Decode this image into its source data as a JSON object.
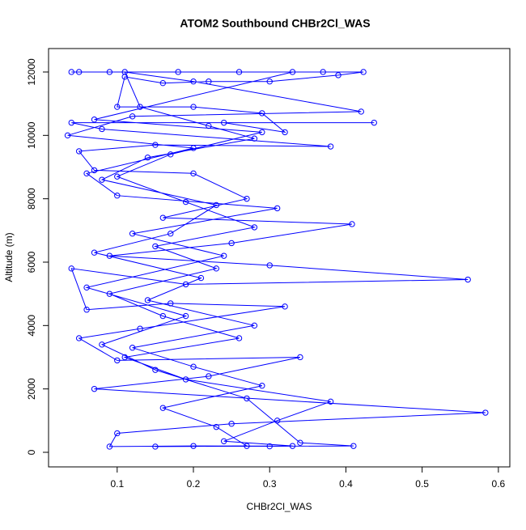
{
  "chart_data": {
    "type": "line",
    "title": "ATOM2 Southbound CHBr2Cl_WAS",
    "x_label": "CHBr2Cl_WAS",
    "y_label": "Altitude (m)",
    "color": "#0000ff",
    "xlim": [
      0.01,
      0.615
    ],
    "ylim": [
      -460,
      12740
    ],
    "xticks": [
      0.1,
      0.2,
      0.3,
      0.4,
      0.5,
      0.6
    ],
    "yticks": [
      0,
      2000,
      4000,
      6000,
      8000,
      10000,
      12000
    ],
    "x": [
      0.04,
      0.05,
      0.09,
      0.18,
      0.26,
      0.37,
      0.423,
      0.39,
      0.3,
      0.22,
      0.16,
      0.11,
      0.1,
      0.2,
      0.29,
      0.32,
      0.24,
      0.437,
      0.04,
      0.08,
      0.38,
      0.15,
      0.05,
      0.07,
      0.2,
      0.27,
      0.16,
      0.408,
      0.25,
      0.09,
      0.3,
      0.56,
      0.19,
      0.04,
      0.06,
      0.17,
      0.32,
      0.13,
      0.05,
      0.1,
      0.34,
      0.22,
      0.07,
      0.583,
      0.25,
      0.1,
      0.09,
      0.2,
      0.3,
      0.41,
      0.34,
      0.27,
      0.15,
      0.08,
      0.19,
      0.06,
      0.24,
      0.12,
      0.31,
      0.1,
      0.06,
      0.2,
      0.035,
      0.12,
      0.42,
      0.2,
      0.11,
      0.13,
      0.22,
      0.28,
      0.14,
      0.08,
      0.23,
      0.17,
      0.07,
      0.21,
      0.14,
      0.28,
      0.12,
      0.2,
      0.29,
      0.16,
      0.23,
      0.27,
      0.15,
      0.33,
      0.24,
      0.31,
      0.38,
      0.19,
      0.11,
      0.26,
      0.16,
      0.09,
      0.23,
      0.15,
      0.28,
      0.19,
      0.1,
      0.17,
      0.29,
      0.07,
      0.33
    ],
    "values": [
      12000,
      12000,
      12000,
      12000,
      12000,
      12000,
      12000,
      11900,
      11700,
      11700,
      11650,
      11850,
      10900,
      10900,
      10700,
      10100,
      10400,
      10400,
      10400,
      10200,
      9650,
      9700,
      9500,
      8900,
      8800,
      8000,
      7400,
      7200,
      6600,
      6200,
      5900,
      5450,
      5300,
      5800,
      4500,
      4700,
      4600,
      3900,
      3600,
      2900,
      3000,
      2400,
      2000,
      1250,
      900,
      600,
      180,
      200,
      190,
      200,
      300,
      1700,
      2600,
      3400,
      4300,
      5200,
      6200,
      6900,
      7700,
      8100,
      8800,
      9600,
      10000,
      10600,
      10750,
      11700,
      12000,
      10900,
      10300,
      9900,
      9300,
      8600,
      7800,
      6900,
      6300,
      5500,
      4800,
      4000,
      3300,
      2700,
      2100,
      1400,
      800,
      200,
      180,
      200,
      350,
      1000,
      1600,
      2300,
      3000,
      3600,
      4300,
      5000,
      5800,
      6500,
      7100,
      7900,
      8700,
      9400,
      10100,
      10500,
      12000
    ]
  }
}
